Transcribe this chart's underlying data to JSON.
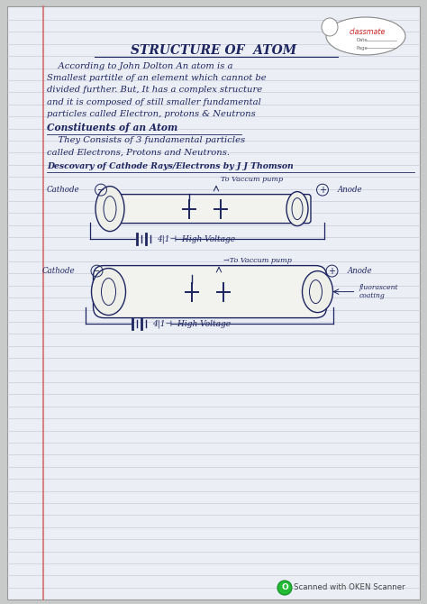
{
  "outer_bg": "#c8caca",
  "page_bg": "#eceef5",
  "line_color": "#c5c8d5",
  "margin_color": "#d06060",
  "ink_color": "#1c2560",
  "title": "STRUCTURE OF  ATOM",
  "classmate_label": "classmate",
  "date_label": "Date",
  "page_label": "Page",
  "para1": [
    "    According to John Dolton An atom is a",
    "Smallest partitle of an element which cannot be",
    "divided further. But, It has a complex structure",
    "and it is composed of still smaller fundamental",
    "particles called Electron, protons & Neutrons"
  ],
  "heading2": "Constituents of an Atom",
  "para2": [
    "    They Consists of 3 fundamental particles",
    "called Electrons, Protons and Neutrons."
  ],
  "heading3": "Descovary of Cathode Rays/Electrons by J J Thomson",
  "diag1_vacuum": "To Vaccum pump",
  "diag1_cathode": "Cathode",
  "diag1_anode": "Anode",
  "diag1_battery": "4|1⊣  High Voltage",
  "diag2_vacuum": "→To Vaccum pump",
  "diag2_cathode": "Cathode",
  "diag2_anode": "Anode",
  "diag2_battery": "4|1⊣  High Voltage",
  "diag2_coating": "fluorascent\ncoating",
  "scanner_text": "Scanned with OKEN Scanner"
}
